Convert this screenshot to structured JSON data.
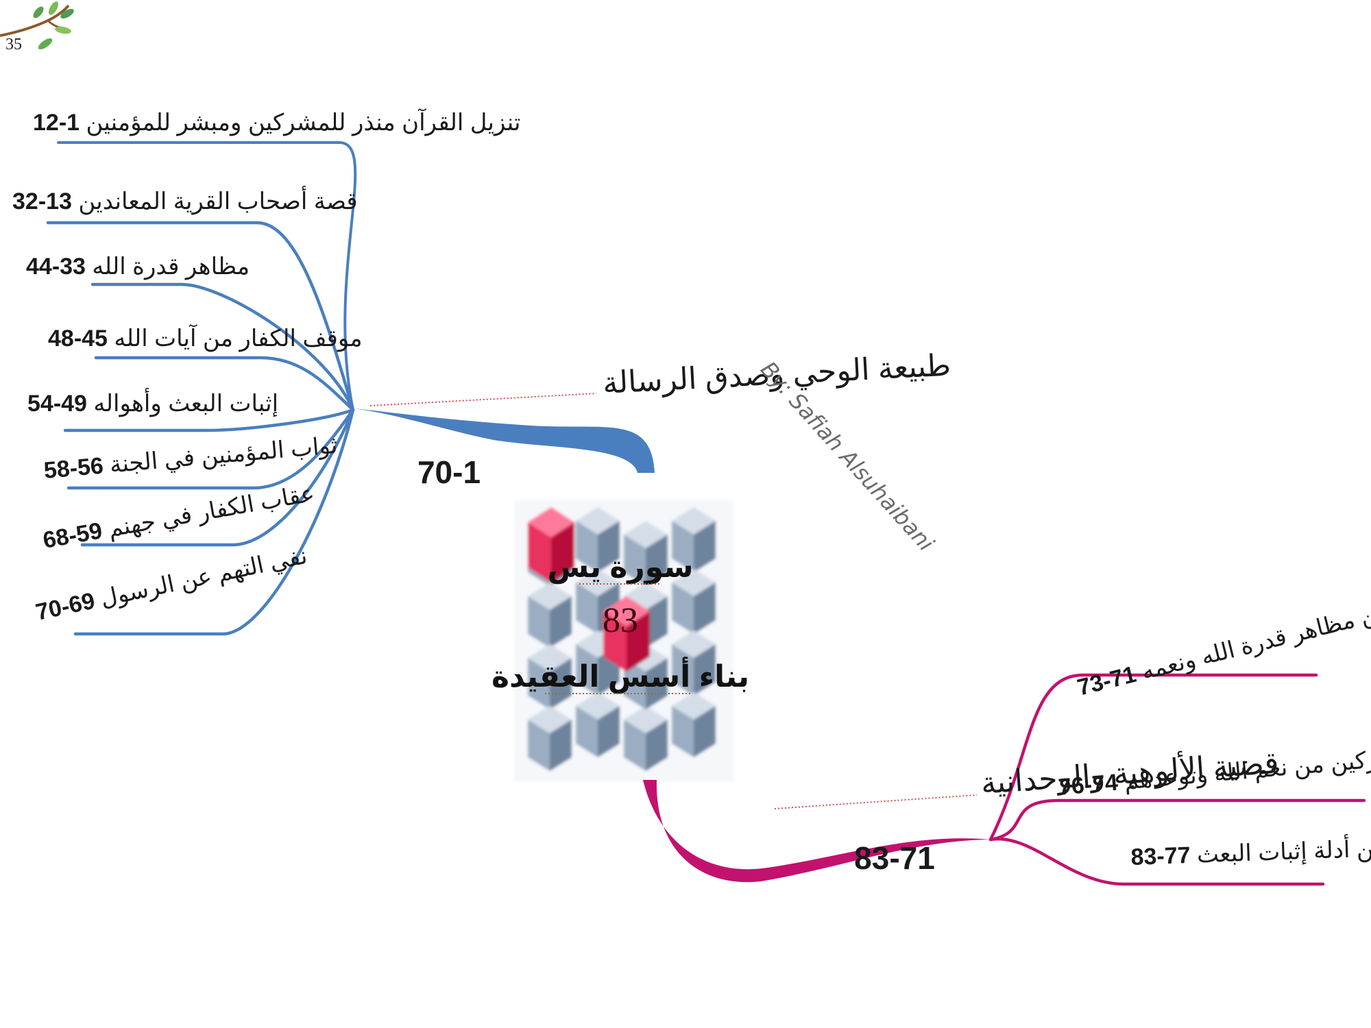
{
  "page_number": "35",
  "author": "By: Safiah Alsuhaibani",
  "center": {
    "title": "سورة يس",
    "verse_count": "83",
    "subtitle": "بناء أسس العقيدة"
  },
  "colors": {
    "branch_one": "#4a7fbf",
    "branch_two": "#c2126e",
    "cube_red": "#e8335f",
    "cube_blue": "#7e93ad"
  },
  "branches": [
    {
      "title": "طبيعة الوحي وصدق الرسالة",
      "range": "70-1",
      "leaves": [
        {
          "text": "تنزيل القرآن منذر للمشركين ومبشر للمؤمنين",
          "range": "12-1"
        },
        {
          "text": "قصة أصحاب القرية المعاندين",
          "range": "32-13"
        },
        {
          "text": "مظاهر قدرة الله",
          "range": "44-33"
        },
        {
          "text": "موقف الكفار من آيات الله",
          "range": "48-45"
        },
        {
          "text": "إثبات البعث وأهواله",
          "range": "54-49"
        },
        {
          "text": "ثواب المؤمنين في الجنة",
          "range": "58-56"
        },
        {
          "text": "عقاب الكفار في جهنم",
          "range": "68-59"
        },
        {
          "text": "نفي التهم عن الرسول",
          "range": "70-69"
        }
      ]
    },
    {
      "title": "قضية الألوهية والوحدانية",
      "range": "83-71",
      "leaves": [
        {
          "text": "من مظاهر قدرة الله ونعمه",
          "range": "73-71"
        },
        {
          "text": "موقف المشركين من نعم الله وتوعدهم",
          "range": "76-74"
        },
        {
          "text": "من أدلة إثبات البعث",
          "range": "83-77"
        }
      ]
    }
  ]
}
